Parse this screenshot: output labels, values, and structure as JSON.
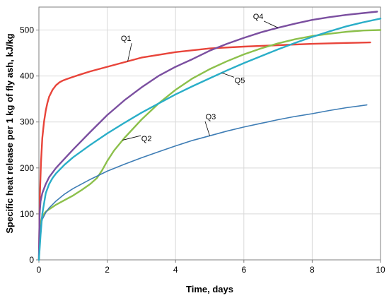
{
  "chart_data": {
    "type": "line",
    "title": "",
    "xlabel": "Time, days",
    "ylabel": "Specific heat release per 1 kg of fly ash, kJ/kg",
    "xlim": [
      0,
      10
    ],
    "ylim": [
      0,
      550
    ],
    "xticks": [
      0,
      2,
      4,
      6,
      8,
      10
    ],
    "yticks": [
      0,
      100,
      200,
      300,
      400,
      500
    ],
    "grid": true,
    "series": [
      {
        "name": "Q1",
        "color": "#e8443a",
        "x": [
          0,
          0.03,
          0.06,
          0.1,
          0.15,
          0.2,
          0.25,
          0.3,
          0.4,
          0.5,
          0.6,
          0.7,
          0.8,
          1.0,
          1.2,
          1.5,
          2.0,
          2.5,
          3.0,
          4.0,
          5.0,
          6.0,
          7.0,
          8.0,
          9.0,
          9.7
        ],
        "y": [
          0,
          140,
          210,
          265,
          300,
          325,
          342,
          355,
          370,
          380,
          386,
          390,
          393,
          398,
          403,
          410,
          420,
          430,
          440,
          452,
          460,
          464,
          467,
          470,
          472,
          473
        ]
      },
      {
        "name": "Q2",
        "color": "#8cc04b",
        "x": [
          0,
          0.05,
          0.1,
          0.2,
          0.3,
          0.5,
          0.75,
          1.0,
          1.25,
          1.5,
          1.7,
          1.85,
          2.0,
          2.2,
          2.5,
          3.0,
          3.5,
          4.0,
          4.5,
          5.0,
          5.5,
          6.0,
          6.5,
          7.0,
          7.5,
          8.0,
          8.5,
          9.0,
          9.5,
          10.0
        ],
        "y": [
          0,
          80,
          95,
          105,
          110,
          120,
          130,
          140,
          152,
          165,
          178,
          195,
          215,
          238,
          265,
          305,
          340,
          370,
          395,
          415,
          432,
          447,
          460,
          471,
          480,
          487,
          492,
          496,
          499,
          500
        ]
      },
      {
        "name": "Q3",
        "color": "#3e7db5",
        "x": [
          0,
          0.03,
          0.06,
          0.1,
          0.2,
          0.3,
          0.5,
          0.75,
          1.0,
          1.5,
          2.0,
          2.5,
          3.0,
          3.5,
          4.0,
          4.5,
          5.0,
          5.5,
          6.0,
          6.5,
          7.0,
          7.5,
          8.0,
          8.5,
          9.0,
          9.6
        ],
        "y": [
          0,
          55,
          75,
          88,
          103,
          113,
          128,
          143,
          155,
          175,
          193,
          208,
          222,
          235,
          248,
          260,
          270,
          280,
          289,
          297,
          305,
          312,
          318,
          325,
          331,
          337
        ]
      },
      {
        "name": "Q4",
        "color": "#7b4fa0",
        "x": [
          0,
          0.02,
          0.05,
          0.1,
          0.2,
          0.3,
          0.5,
          0.75,
          1.0,
          1.5,
          2.0,
          2.5,
          3.0,
          3.5,
          4.0,
          4.5,
          5.0,
          5.5,
          6.0,
          6.5,
          7.0,
          7.5,
          8.0,
          8.5,
          9.0,
          9.5,
          9.9
        ],
        "y": [
          0,
          100,
          128,
          145,
          165,
          180,
          200,
          220,
          240,
          278,
          315,
          347,
          375,
          400,
          420,
          437,
          455,
          470,
          483,
          495,
          505,
          514,
          522,
          528,
          533,
          537,
          540
        ]
      },
      {
        "name": "Q5",
        "color": "#2aaec8",
        "x": [
          0,
          0.05,
          0.1,
          0.2,
          0.3,
          0.4,
          0.5,
          0.75,
          1.0,
          1.5,
          2.0,
          2.5,
          3.0,
          3.5,
          4.0,
          4.5,
          5.0,
          5.5,
          6.0,
          6.5,
          7.0,
          7.5,
          8.0,
          8.5,
          9.0,
          9.5,
          10.0
        ],
        "y": [
          0,
          55,
          100,
          145,
          165,
          178,
          188,
          207,
          223,
          250,
          275,
          298,
          320,
          340,
          360,
          378,
          395,
          412,
          428,
          443,
          458,
          472,
          485,
          497,
          508,
          517,
          525
        ]
      }
    ],
    "annotations": [
      {
        "text": "Q1",
        "series": "Q1",
        "at_x": 2.6,
        "label_at": [
          2.55,
          476
        ]
      },
      {
        "text": "Q2",
        "series": "Q2",
        "at_x": 2.45,
        "label_at": [
          3.15,
          258
        ]
      },
      {
        "text": "Q3",
        "series": "Q3",
        "at_x": 5.0,
        "label_at": [
          5.03,
          306
        ]
      },
      {
        "text": "Q4",
        "series": "Q4",
        "at_x": 7.0,
        "label_at": [
          6.42,
          524
        ]
      },
      {
        "text": "Q5",
        "series": "Q5",
        "at_x": 5.35,
        "label_at": [
          5.88,
          385
        ]
      }
    ]
  }
}
